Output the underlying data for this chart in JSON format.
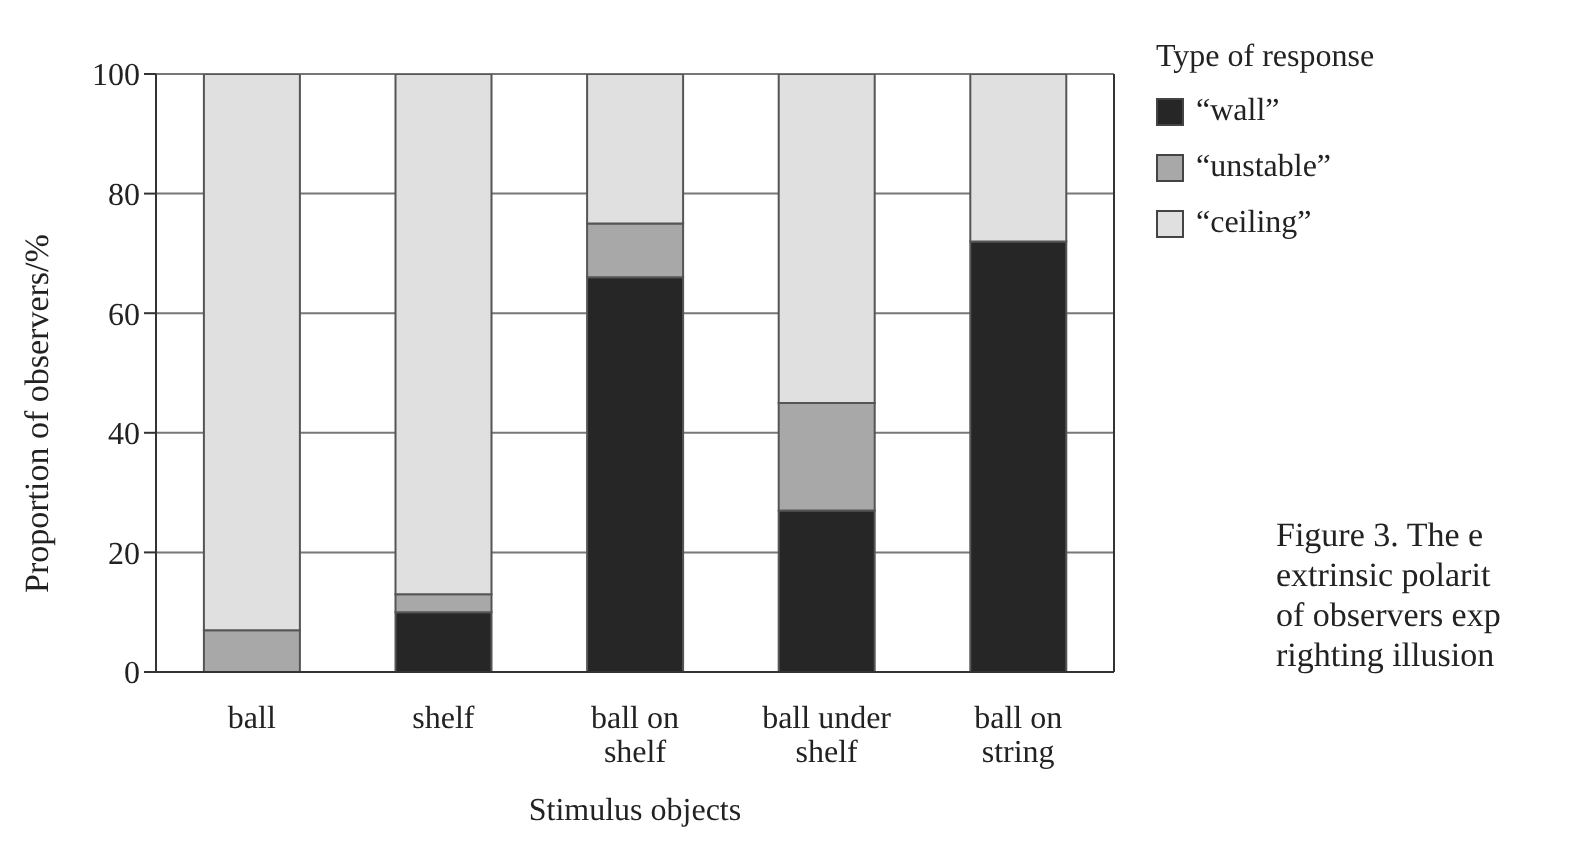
{
  "chart_data": {
    "type": "bar",
    "stacked": true,
    "xlabel": "Stimulus objects",
    "ylabel": "Proportion of observers/%",
    "legend_title": "Type of response",
    "categories": [
      "ball",
      "shelf",
      "ball on shelf",
      "ball under shelf",
      "ball on string"
    ],
    "series": [
      {
        "name": "“wall”",
        "color": "#262626",
        "values": [
          0,
          10,
          66,
          27,
          72
        ]
      },
      {
        "name": "“unstable”",
        "color": "#a8a8a8",
        "values": [
          7,
          3,
          9,
          18,
          0
        ]
      },
      {
        "name": "“ceiling”",
        "color": "#e0e0e0",
        "values": [
          93,
          87,
          25,
          55,
          28
        ]
      }
    ],
    "ylim": [
      0,
      100
    ],
    "yticks": [
      0,
      20,
      40,
      60,
      80,
      100
    ],
    "grid": "y",
    "legend": "right",
    "annotations": [
      "Figure 3. The e\nextrinsic polarit\nof observers exp\nrighting illusion"
    ]
  }
}
